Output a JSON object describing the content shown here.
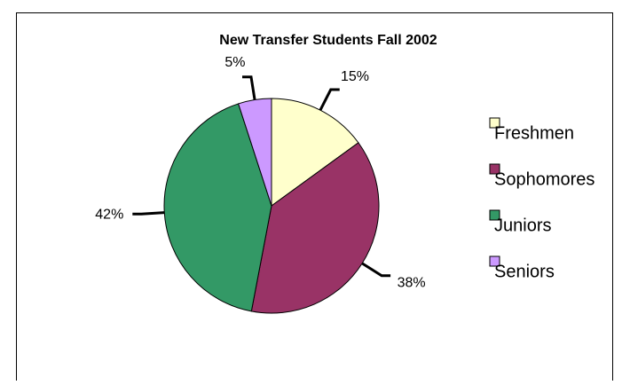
{
  "chart_data": {
    "type": "pie",
    "title": "New Transfer Students Fall 2002",
    "categories": [
      "Freshmen",
      "Sophomores",
      "Juniors",
      "Seniors"
    ],
    "values": [
      15,
      38,
      42,
      5
    ],
    "value_labels": [
      "15%",
      "38%",
      "42%",
      "5%"
    ],
    "colors": [
      "#ffffcc",
      "#993366",
      "#339966",
      "#cc99ff"
    ],
    "legend": "right"
  }
}
